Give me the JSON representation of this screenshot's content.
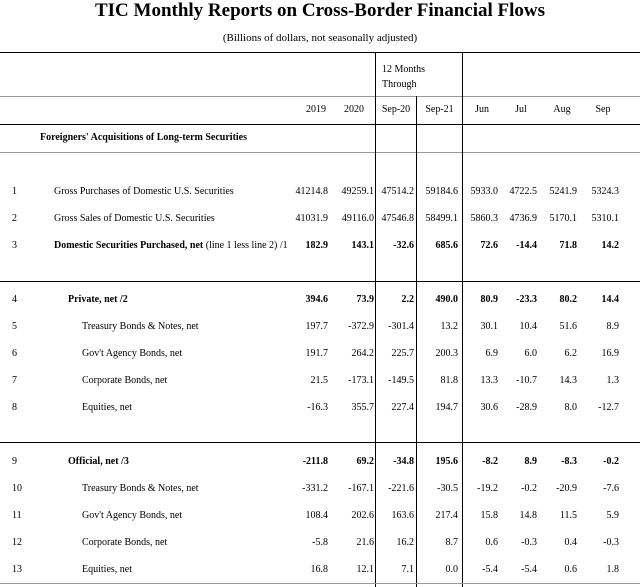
{
  "report": {
    "title": "TIC Monthly Reports on Cross-Border Financial Flows",
    "subtitle": "(Billions of dollars, not seasonally adjusted)",
    "group_header_line1": "12 Months",
    "group_header_line2": "Through",
    "columns": [
      "2019",
      "2020",
      "Sep-20",
      "Sep-21",
      "Jun",
      "Jul",
      "Aug",
      "Sep"
    ],
    "section_title": "Foreigners' Acquisitions of Long-term Securities",
    "rows": [
      {
        "num": "1",
        "label": "Gross Purchases of Domestic U.S. Securities",
        "desc": "",
        "values": [
          "41214.8",
          "49259.1",
          "47514.2",
          "59184.6",
          "5933.0",
          "4722.5",
          "5241.9",
          "5324.3"
        ]
      },
      {
        "num": "2",
        "label": "Gross Sales of Domestic U.S. Securities",
        "desc": "",
        "values": [
          "41031.9",
          "49116.0",
          "47546.8",
          "58499.1",
          "5860.3",
          "4736.9",
          "5170.1",
          "5310.1"
        ]
      },
      {
        "num": "3",
        "label": "Domestic Securities Purchased, net",
        "desc": "(line 1 less line 2) /1",
        "values": [
          "182.9",
          "143.1",
          "-32.6",
          "685.6",
          "72.6",
          "-14.4",
          "71.8",
          "14.2"
        ]
      },
      {
        "num": "4",
        "label": "Private, net /2",
        "desc": "",
        "values": [
          "394.6",
          "73.9",
          "2.2",
          "490.0",
          "80.9",
          "-23.3",
          "80.2",
          "14.4"
        ]
      },
      {
        "num": "5",
        "label": "Treasury Bonds & Notes, net",
        "desc": "",
        "values": [
          "197.7",
          "-372.9",
          "-301.4",
          "13.2",
          "30.1",
          "10.4",
          "51.6",
          "8.9"
        ]
      },
      {
        "num": "6",
        "label": "Gov't Agency Bonds, net",
        "desc": "",
        "values": [
          "191.7",
          "264.2",
          "225.7",
          "200.3",
          "6.9",
          "6.0",
          "6.2",
          "16.9"
        ]
      },
      {
        "num": "7",
        "label": "Corporate Bonds, net",
        "desc": "",
        "values": [
          "21.5",
          "-173.1",
          "-149.5",
          "81.8",
          "13.3",
          "-10.7",
          "14.3",
          "1.3"
        ]
      },
      {
        "num": "8",
        "label": "Equities, net",
        "desc": "",
        "values": [
          "-16.3",
          "355.7",
          "227.4",
          "194.7",
          "30.6",
          "-28.9",
          "8.0",
          "-12.7"
        ]
      },
      {
        "num": "9",
        "label": "Official, net /3",
        "desc": "",
        "values": [
          "-211.8",
          "69.2",
          "-34.8",
          "195.6",
          "-8.2",
          "8.9",
          "-8.3",
          "-0.2"
        ]
      },
      {
        "num": "10",
        "label": "Treasury Bonds & Notes, net",
        "desc": "",
        "values": [
          "-331.2",
          "-167.1",
          "-221.6",
          "-30.5",
          "-19.2",
          "-0.2",
          "-20.9",
          "-7.6"
        ]
      },
      {
        "num": "11",
        "label": "Gov't Agency Bonds, net",
        "desc": "",
        "values": [
          "108.4",
          "202.6",
          "163.6",
          "217.4",
          "15.8",
          "14.8",
          "11.5",
          "5.9"
        ]
      },
      {
        "num": "12",
        "label": "Corporate Bonds, net",
        "desc": "",
        "values": [
          "-5.8",
          "21.6",
          "16.2",
          "8.7",
          "0.6",
          "-0.3",
          "0.4",
          "-0.3"
        ]
      },
      {
        "num": "13",
        "label": "Equities, net",
        "desc": "",
        "values": [
          "16.8",
          "12.1",
          "7.1",
          "0.0",
          "-5.4",
          "-5.4",
          "0.6",
          "1.8"
        ]
      }
    ]
  }
}
